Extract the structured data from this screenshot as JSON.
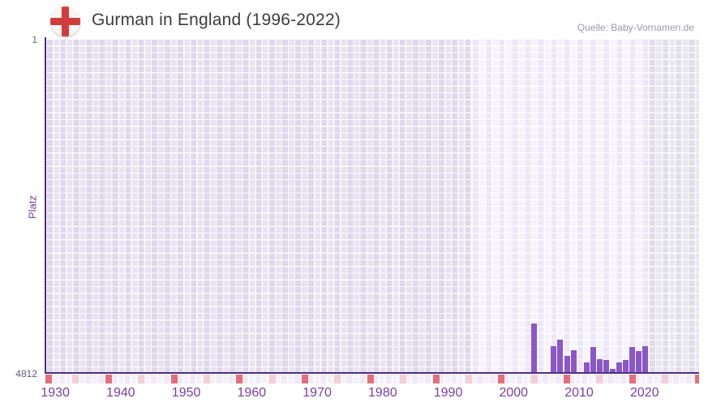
{
  "header": {
    "title": "Gurman in England (1996-2022)",
    "source": "Quelle: Baby-Vornamen.de",
    "flag_icon": "england-flag-icon"
  },
  "chart": {
    "y_axis": {
      "label": "Platz",
      "top_tick": "1",
      "bottom_tick": "4812"
    },
    "x_axis": {
      "tick_labels": [
        "1930",
        "1940",
        "1950",
        "1960",
        "1970",
        "1980",
        "1990",
        "2000",
        "2010",
        "2020"
      ]
    }
  },
  "chart_data": {
    "type": "bar",
    "title": "Gurman in England (1996-2022)",
    "xlabel": "",
    "ylabel": "Platz",
    "ylim": [
      1,
      4812
    ],
    "y_axis_inverted": true,
    "x_visible_range_years": [
      1931,
      2031
    ],
    "data_period_years": [
      1996,
      2022
    ],
    "grid": "checkered-lavender",
    "legend": "none",
    "series": [
      {
        "name": "Platz (Rang des Vornamens)",
        "points": [
          {
            "year": 2005,
            "rank": 4100
          },
          {
            "year": 2008,
            "rank": 4425
          },
          {
            "year": 2009,
            "rank": 4333
          },
          {
            "year": 2010,
            "rank": 4563
          },
          {
            "year": 2011,
            "rank": 4482
          },
          {
            "year": 2013,
            "rank": 4665
          },
          {
            "year": 2014,
            "rank": 4443
          },
          {
            "year": 2015,
            "rank": 4610
          },
          {
            "year": 2016,
            "rank": 4629
          },
          {
            "year": 2017,
            "rank": 4754
          },
          {
            "year": 2018,
            "rank": 4665
          },
          {
            "year": 2019,
            "rank": 4620
          },
          {
            "year": 2020,
            "rank": 4438
          },
          {
            "year": 2021,
            "rank": 4496
          },
          {
            "year": 2022,
            "rank": 4426
          }
        ]
      }
    ],
    "years_without_rank_in_period": [
      1996,
      1997,
      1998,
      1999,
      2000,
      2001,
      2002,
      2003,
      2004,
      2006,
      2007,
      2012
    ],
    "decade_markers": [
      1930,
      1940,
      1950,
      1960,
      1970,
      1980,
      1990,
      2000,
      2010,
      2020,
      2030
    ],
    "half_decade_markers": [
      1935,
      1945,
      1955,
      1965,
      1975,
      1985,
      1995,
      2005,
      2015,
      2025
    ]
  },
  "colors": {
    "bar": "#8b57c7",
    "axis_line": "#4f2c85",
    "x_tick_text": "#7b3da6",
    "y_tick_text": "#655c7d",
    "y_label_text": "#7443a8",
    "title_text": "#3d3d3d",
    "source_text": "#9c9aa2",
    "decade_marker": "#e1707c",
    "half_decade_marker": "#f3ced9",
    "flag_cross_red": "#d23c3e"
  }
}
